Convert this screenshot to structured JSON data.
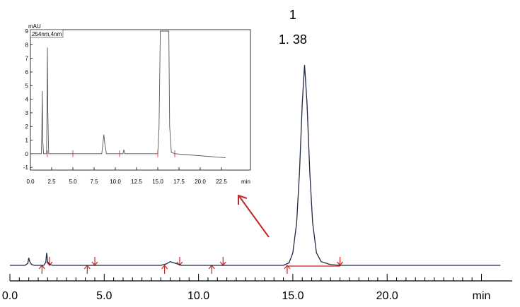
{
  "chart_data": [
    {
      "type": "line",
      "xlabel": "min",
      "ylabel": "",
      "xlim": [
        0.0,
        26.0
      ],
      "ylim": [
        -3.0,
        100.0
      ],
      "xticks": [
        {
          "value": 0.0,
          "label": "0.0"
        },
        {
          "value": 5.0,
          "label": "5.0"
        },
        {
          "value": 10.0,
          "label": "10.0"
        },
        {
          "value": 15.0,
          "label": "15.0"
        },
        {
          "value": 20.0,
          "label": "20.0"
        },
        {
          "value": 25.0,
          "label": "min"
        }
      ],
      "annotations": [
        {
          "text": "1",
          "x": 15.6
        },
        {
          "text": "1. 38",
          "x": 15.6
        }
      ],
      "peak_markers": [
        1.7,
        2.1,
        4.1,
        4.5,
        8.2,
        9.0,
        10.7,
        11.3,
        14.7,
        17.5
      ],
      "series": [
        {
          "color": "#1c2a44",
          "points": [
            [
              0,
              0
            ],
            [
              0.8,
              0
            ],
            [
              0.95,
              0.8
            ],
            [
              1.0,
              3
            ],
            [
              1.05,
              1.5
            ],
            [
              1.15,
              0.3
            ],
            [
              1.3,
              0
            ],
            [
              1.8,
              0
            ],
            [
              1.9,
              1.2
            ],
            [
              1.95,
              5
            ],
            [
              2.0,
              1.5
            ],
            [
              2.1,
              0.3
            ],
            [
              2.3,
              0
            ],
            [
              8.0,
              0
            ],
            [
              8.3,
              0.6
            ],
            [
              8.5,
              1.5
            ],
            [
              8.8,
              0.8
            ],
            [
              9.1,
              0
            ],
            [
              14.5,
              0
            ],
            [
              14.8,
              1
            ],
            [
              15.0,
              5
            ],
            [
              15.2,
              17
            ],
            [
              15.35,
              37
            ],
            [
              15.5,
              65
            ],
            [
              15.62,
              80
            ],
            [
              15.75,
              65
            ],
            [
              15.9,
              37
            ],
            [
              16.05,
              17
            ],
            [
              16.25,
              5
            ],
            [
              16.5,
              1.5
            ],
            [
              17.0,
              0.3
            ],
            [
              17.5,
              0
            ],
            [
              26.0,
              0
            ]
          ]
        }
      ]
    },
    {
      "type": "line",
      "title": "254nm,4nm",
      "xlabel": "min",
      "ylabel": "mAU",
      "xlim": [
        0.0,
        25.0
      ],
      "ylim": [
        -1.2,
        9.0
      ],
      "xticks": [
        0.0,
        2.5,
        5.0,
        7.5,
        10.0,
        12.5,
        15.0,
        17.5,
        20.0,
        22.5
      ],
      "yticks": [
        -1,
        0,
        1,
        2,
        3,
        4,
        5,
        6,
        7,
        8,
        9
      ],
      "series": [
        {
          "color": "#555555",
          "points": [
            [
              0,
              0
            ],
            [
              1.3,
              0
            ],
            [
              1.35,
              2.0
            ],
            [
              1.4,
              4.6
            ],
            [
              1.45,
              1
            ],
            [
              1.55,
              0
            ],
            [
              1.9,
              0
            ],
            [
              1.95,
              3
            ],
            [
              2.0,
              7.8
            ],
            [
              2.05,
              3
            ],
            [
              2.15,
              0
            ],
            [
              8.4,
              0
            ],
            [
              8.55,
              0.8
            ],
            [
              8.65,
              1.4
            ],
            [
              8.75,
              0.8
            ],
            [
              8.95,
              0
            ],
            [
              10.9,
              0
            ],
            [
              11.0,
              0.3
            ],
            [
              11.1,
              0
            ],
            [
              15.0,
              0
            ],
            [
              15.15,
              2
            ],
            [
              15.3,
              9
            ],
            [
              16.3,
              9
            ],
            [
              16.4,
              2
            ],
            [
              16.6,
              0.1
            ],
            [
              17.0,
              0
            ],
            [
              23.0,
              -0.3
            ]
          ]
        }
      ]
    }
  ]
}
